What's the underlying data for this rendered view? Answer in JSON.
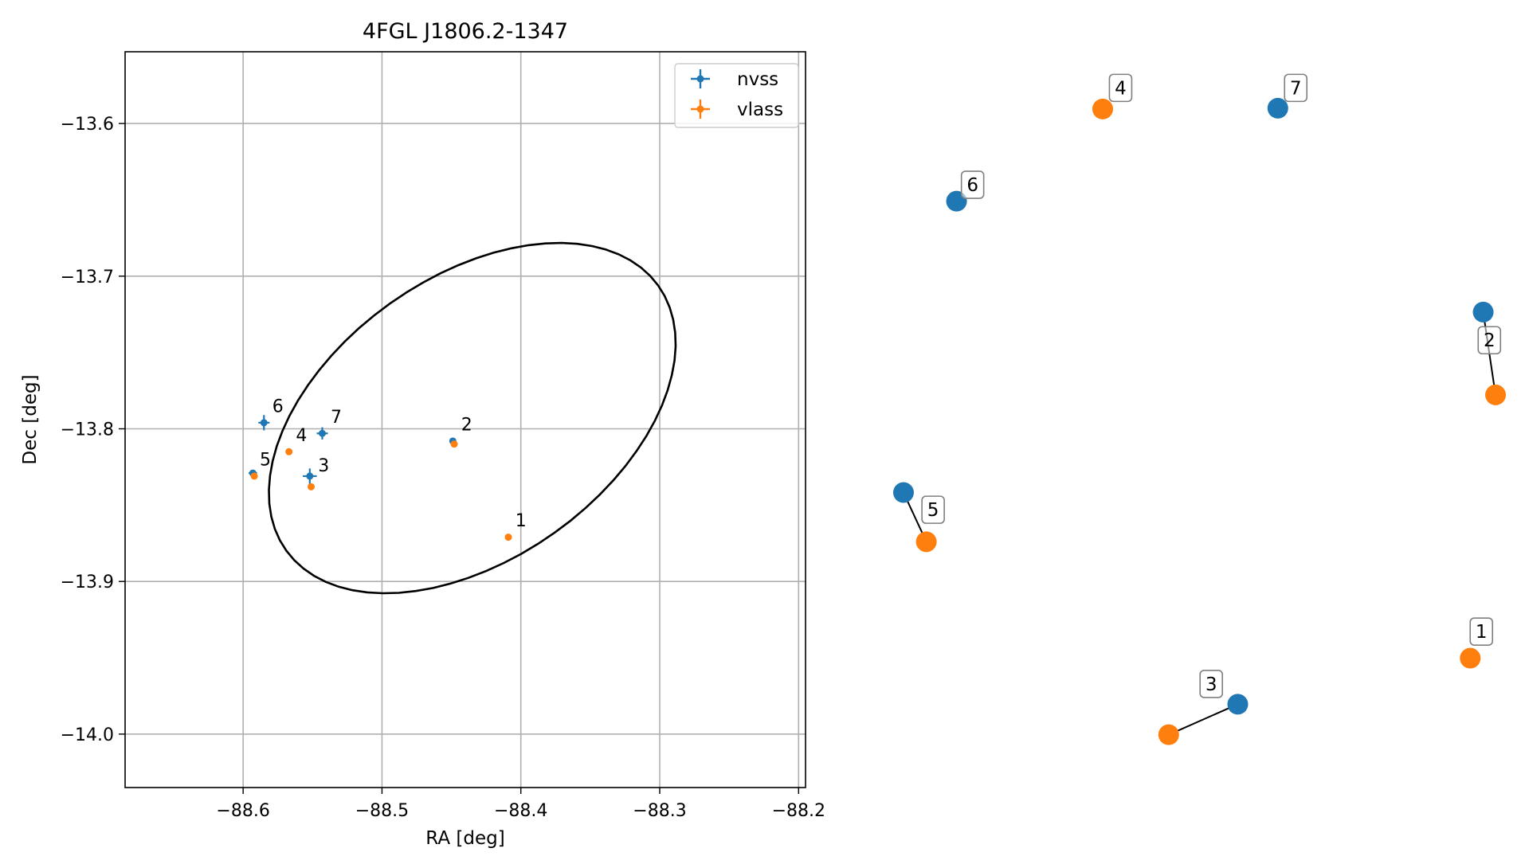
{
  "chart_data": [
    {
      "type": "scatter",
      "title": "4FGL J1806.2-1347",
      "xlabel": "RA [deg]",
      "ylabel": "Dec [deg]",
      "xlim": [
        -88.685,
        -88.195
      ],
      "ylim": [
        -14.035,
        -13.553
      ],
      "x_ticks": [
        -88.6,
        -88.5,
        -88.4,
        -88.3,
        -88.2
      ],
      "x_tick_labels": [
        "−88.6",
        "−88.5",
        "−88.4",
        "−88.3",
        "−88.2"
      ],
      "y_ticks": [
        -13.6,
        -13.7,
        -13.8,
        -13.9,
        -14.0
      ],
      "y_tick_labels": [
        "−13.6",
        "−13.7",
        "−13.8",
        "−13.9",
        "−14.0"
      ],
      "grid": true,
      "legend": {
        "placement": "top-right",
        "entries": [
          "nvss",
          "vlass"
        ]
      },
      "colors": {
        "nvss": "#1f77b4",
        "vlass": "#ff7f0e",
        "ellipse": "#000000",
        "grid": "#b0b0b0"
      },
      "ellipse": {
        "center": [
          -88.435,
          -13.793
        ],
        "width_deg": 0.32,
        "height_deg": 0.19,
        "angle_deg": 30
      },
      "series": [
        {
          "name": "nvss",
          "points": [
            {
              "id": "6",
              "x": -88.585,
              "y": -13.796,
              "xerr": 0.004,
              "yerr": 0.005
            },
            {
              "id": "7",
              "x": -88.543,
              "y": -13.803,
              "xerr": 0.004,
              "yerr": 0.004
            },
            {
              "id": "3",
              "x": -88.552,
              "y": -13.831,
              "xerr": 0.005,
              "yerr": 0.005
            },
            {
              "id": "2",
              "x": -88.449,
              "y": -13.808,
              "xerr": 0.002,
              "yerr": 0.002
            },
            {
              "id": "5",
              "x": -88.593,
              "y": -13.829,
              "xerr": 0.003,
              "yerr": 0.002
            }
          ]
        },
        {
          "name": "vlass",
          "points": [
            {
              "id": "4",
              "x": -88.567,
              "y": -13.815
            },
            {
              "id": "3",
              "x": -88.551,
              "y": -13.838
            },
            {
              "id": "2",
              "x": -88.448,
              "y": -13.81
            },
            {
              "id": "5",
              "x": -88.592,
              "y": -13.831
            },
            {
              "id": "1",
              "x": -88.409,
              "y": -13.871
            }
          ]
        }
      ],
      "point_labels": [
        {
          "text": "6",
          "x": -88.579,
          "y": -13.789
        },
        {
          "text": "7",
          "x": -88.537,
          "y": -13.796
        },
        {
          "text": "4",
          "x": -88.562,
          "y": -13.808
        },
        {
          "text": "5",
          "x": -88.588,
          "y": -13.824
        },
        {
          "text": "3",
          "x": -88.546,
          "y": -13.828
        },
        {
          "text": "2",
          "x": -88.443,
          "y": -13.801
        },
        {
          "text": "1",
          "x": -88.404,
          "y": -13.864
        }
      ]
    },
    {
      "type": "scatter",
      "axes_visible": false,
      "xlim": [
        0,
        1
      ],
      "ylim": [
        0,
        1
      ],
      "colors": {
        "nvss": "#1f77b4",
        "vlass": "#ff7f0e",
        "link": "#000000"
      },
      "series": [
        {
          "name": "nvss",
          "points": [
            {
              "id": "6",
              "x": 0.126,
              "y": 0.77
            },
            {
              "id": "7",
              "x": 0.647,
              "y": 0.889
            },
            {
              "id": "2",
              "x": 0.98,
              "y": 0.628
            },
            {
              "id": "5",
              "x": 0.04,
              "y": 0.397
            },
            {
              "id": "3",
              "x": 0.582,
              "y": 0.126
            }
          ]
        },
        {
          "name": "vlass",
          "points": [
            {
              "id": "4",
              "x": 0.363,
              "y": 0.888
            },
            {
              "id": "2",
              "x": 1.0,
              "y": 0.522
            },
            {
              "id": "5",
              "x": 0.077,
              "y": 0.334
            },
            {
              "id": "1",
              "x": 0.959,
              "y": 0.185
            },
            {
              "id": "3",
              "x": 0.47,
              "y": 0.087
            }
          ]
        }
      ],
      "links": [
        {
          "id": "2",
          "from": [
            0.98,
            0.628
          ],
          "to": [
            1.0,
            0.522
          ]
        },
        {
          "id": "5",
          "from": [
            0.04,
            0.397
          ],
          "to": [
            0.077,
            0.334
          ]
        },
        {
          "id": "3",
          "from": [
            0.582,
            0.126
          ],
          "to": [
            0.47,
            0.087
          ]
        }
      ],
      "labels": [
        {
          "text": "4",
          "x": 0.392,
          "y": 0.915
        },
        {
          "text": "7",
          "x": 0.676,
          "y": 0.915
        },
        {
          "text": "6",
          "x": 0.152,
          "y": 0.791
        },
        {
          "text": "2",
          "x": 0.99,
          "y": 0.592
        },
        {
          "text": "5",
          "x": 0.088,
          "y": 0.375
        },
        {
          "text": "1",
          "x": 0.977,
          "y": 0.219
        },
        {
          "text": "3",
          "x": 0.539,
          "y": 0.152
        }
      ]
    }
  ]
}
